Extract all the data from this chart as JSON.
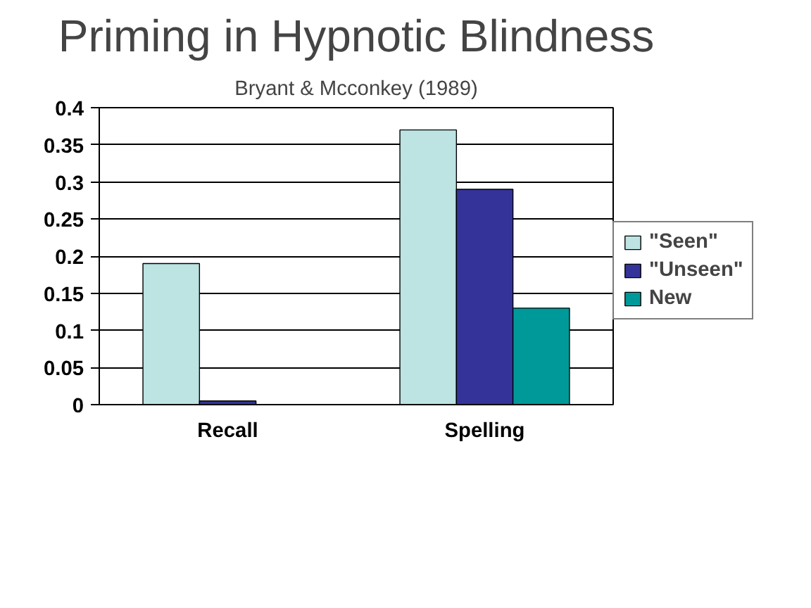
{
  "chart_data": {
    "type": "bar",
    "title": "Priming in Hypnotic Blindness",
    "subtitle": "Bryant & Mcconkey (1989)",
    "categories": [
      "Recall",
      "Spelling"
    ],
    "series": [
      {
        "name": "\"Seen\"",
        "color": "#bde3e3",
        "values": [
          0.19,
          0.37
        ]
      },
      {
        "name": "\"Unseen\"",
        "color": "#333399",
        "values": [
          0.005,
          0.29
        ]
      },
      {
        "name": "New",
        "color": "#009999",
        "values": [
          null,
          0.13
        ]
      }
    ],
    "ylim": [
      0,
      0.4
    ],
    "yticks": [
      0,
      0.05,
      0.1,
      0.15,
      0.2,
      0.25,
      0.3,
      0.35,
      0.4
    ],
    "grid": "y",
    "legend": "right"
  }
}
